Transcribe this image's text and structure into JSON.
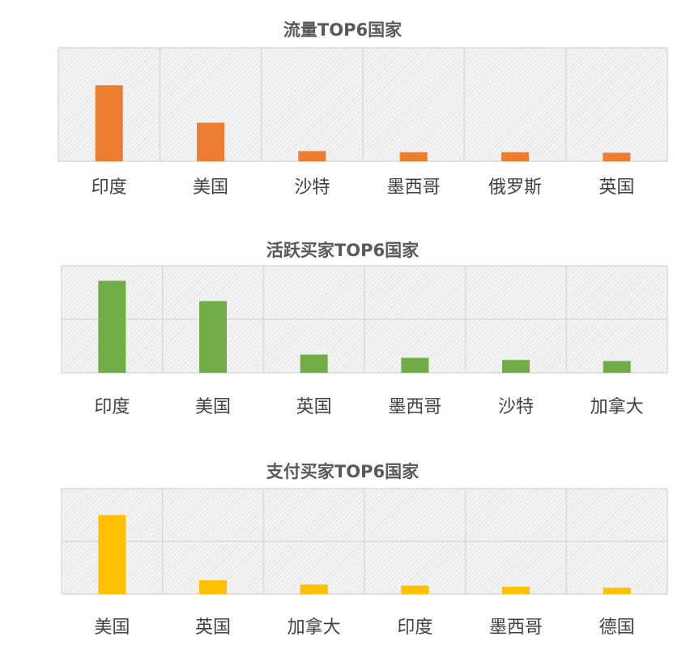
{
  "chart_data": [
    {
      "type": "bar",
      "title": "流量TOP6国家",
      "categories": [
        "印度",
        "美国",
        "沙特",
        "墨西哥",
        "俄罗斯",
        "英国"
      ],
      "values": [
        67,
        34,
        9,
        8,
        8,
        7.5
      ],
      "ylim": [
        0,
        100
      ],
      "grid": true,
      "color": "#ED7D31"
    },
    {
      "type": "bar",
      "title": "活跃买家TOP6国家",
      "categories": [
        "印度",
        "美国",
        "英国",
        "墨西哥",
        "沙特",
        "加拿大"
      ],
      "values": [
        86,
        67,
        17,
        14,
        12,
        11
      ],
      "ylim": [
        0,
        100
      ],
      "grid": true,
      "color": "#70AD47"
    },
    {
      "type": "bar",
      "title": "支付买家TOP6国家",
      "categories": [
        "美国",
        "英国",
        "加拿大",
        "印度",
        "墨西哥",
        "德国"
      ],
      "values": [
        75,
        13,
        9,
        8,
        7,
        6
      ],
      "ylim": [
        0,
        100
      ],
      "grid": true,
      "color": "#FFC000"
    }
  ]
}
